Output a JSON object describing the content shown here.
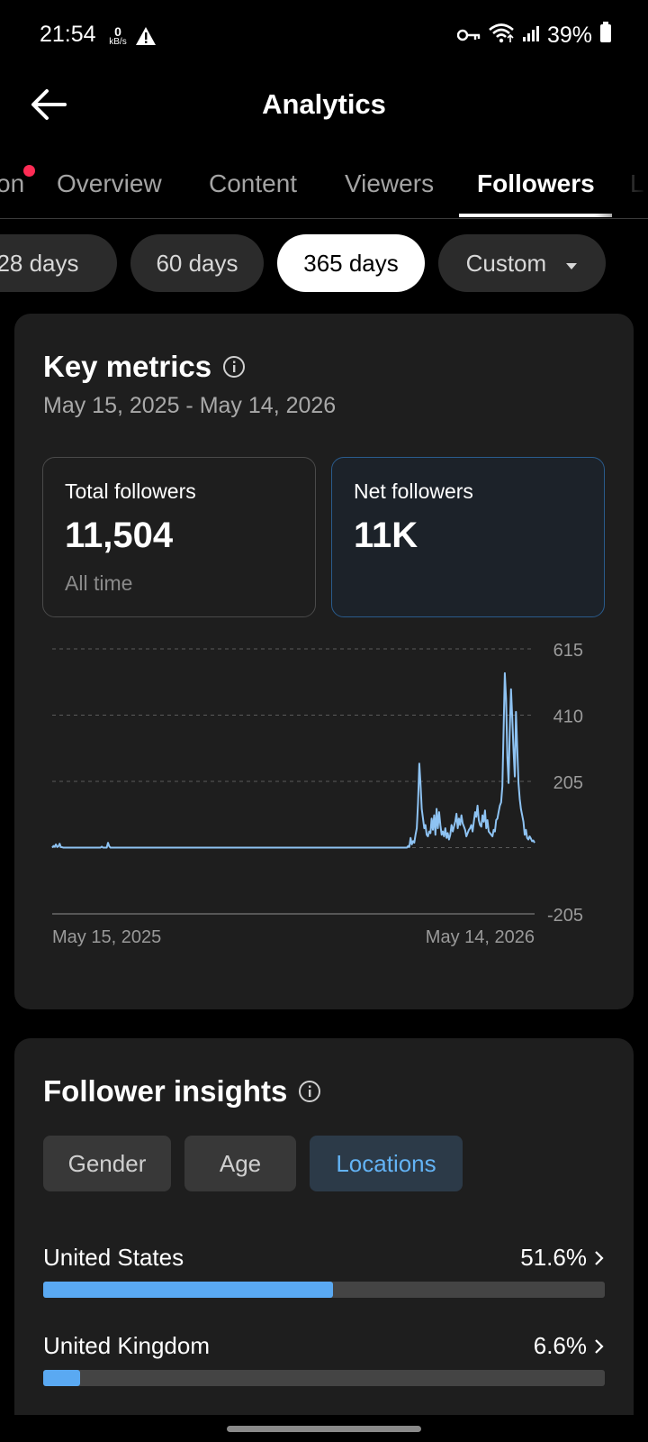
{
  "status_bar": {
    "time": "21:54",
    "net_speed_value": "0",
    "net_speed_unit": "kB/s",
    "battery": "39%",
    "icons": [
      "alert-triangle-icon",
      "key-icon",
      "wifi-icon",
      "signal-icon",
      "battery-icon"
    ]
  },
  "header": {
    "title": "Analytics",
    "back_icon": "arrow-left-icon"
  },
  "tabs": [
    {
      "label": "on",
      "has_notification_dot": true
    },
    {
      "label": "Overview"
    },
    {
      "label": "Content"
    },
    {
      "label": "Viewers"
    },
    {
      "label": "Followers",
      "active": true
    },
    {
      "label": "L"
    }
  ],
  "ranges": [
    {
      "label": "28 days"
    },
    {
      "label": "60 days"
    },
    {
      "label": "365 days",
      "active": true
    },
    {
      "label": "Custom",
      "dropdown": true
    }
  ],
  "key_metrics": {
    "title": "Key metrics",
    "date_range": "May 15, 2025 - May 14, 2026",
    "total_followers": {
      "label": "Total followers",
      "value": "11,504",
      "sub": "All time"
    },
    "net_followers": {
      "label": "Net followers",
      "value": "11K"
    }
  },
  "chart_data": {
    "type": "line",
    "x_start_label": "May 15, 2025",
    "x_end_label": "May 14, 2026",
    "y_ticks": [
      "615",
      "410",
      "205",
      "-205"
    ],
    "ylim": [
      -205,
      615
    ],
    "grid": true,
    "color": "#8ec3f3",
    "values": [
      0,
      5,
      3,
      10,
      2,
      4,
      12,
      2,
      1,
      0,
      0,
      0,
      0,
      0,
      0,
      0,
      0,
      0,
      0,
      0,
      0,
      0,
      0,
      0,
      0,
      0,
      0,
      0,
      0,
      0,
      0,
      0,
      0,
      0,
      0,
      0,
      0,
      0,
      0,
      0,
      3,
      0,
      0,
      0,
      0,
      15,
      4,
      0,
      0,
      0,
      0,
      0,
      0,
      0,
      0,
      0,
      0,
      0,
      0,
      0,
      0,
      0,
      0,
      0,
      0,
      0,
      0,
      0,
      0,
      0,
      0,
      0,
      0,
      0,
      0,
      0,
      0,
      0,
      0,
      0,
      0,
      0,
      0,
      0,
      0,
      0,
      0,
      0,
      0,
      0,
      0,
      0,
      0,
      0,
      0,
      0,
      0,
      0,
      0,
      0,
      0,
      0,
      0,
      0,
      0,
      0,
      0,
      0,
      0,
      0,
      0,
      0,
      0,
      0,
      0,
      0,
      0,
      0,
      0,
      0,
      0,
      0,
      0,
      0,
      0,
      0,
      0,
      0,
      0,
      0,
      0,
      0,
      0,
      0,
      0,
      0,
      0,
      0,
      0,
      0,
      0,
      0,
      0,
      0,
      0,
      0,
      0,
      0,
      0,
      0,
      0,
      0,
      0,
      0,
      0,
      0,
      0,
      0,
      0,
      0,
      0,
      0,
      0,
      0,
      0,
      0,
      0,
      0,
      0,
      0,
      0,
      0,
      0,
      0,
      0,
      0,
      0,
      0,
      0,
      0,
      0,
      0,
      0,
      0,
      0,
      0,
      0,
      0,
      0,
      0,
      0,
      0,
      0,
      0,
      0,
      0,
      0,
      0,
      0,
      0,
      0,
      0,
      0,
      0,
      0,
      0,
      0,
      0,
      0,
      0,
      0,
      0,
      0,
      0,
      0,
      0,
      0,
      0,
      0,
      0,
      0,
      0,
      0,
      0,
      0,
      0,
      0,
      0,
      0,
      0,
      0,
      0,
      0,
      0,
      0,
      0,
      0,
      0,
      0,
      0,
      0,
      0,
      0,
      0,
      0,
      0,
      0,
      0,
      0,
      0,
      0,
      0,
      0,
      0,
      0,
      0,
      0,
      0,
      0,
      0,
      0,
      0,
      0,
      0,
      0,
      0,
      0,
      0,
      0,
      0,
      0,
      0,
      0,
      0,
      0,
      0,
      0,
      0,
      0,
      0,
      0,
      0,
      0,
      0,
      0,
      0,
      0,
      5,
      2,
      30,
      10,
      20,
      15,
      40,
      60,
      140,
      260,
      200,
      120,
      90,
      60,
      70,
      40,
      35,
      50,
      45,
      90,
      55,
      100,
      40,
      120,
      60,
      110,
      70,
      40,
      50,
      35,
      60,
      30,
      45,
      25,
      40,
      70,
      50,
      65,
      80,
      105,
      60,
      90,
      70,
      100,
      75,
      65,
      55,
      35,
      45,
      55,
      60,
      70,
      50,
      80,
      110,
      95,
      130,
      85,
      70,
      65,
      100,
      80,
      115,
      60,
      85,
      50,
      45,
      40,
      35,
      55,
      50,
      85,
      90,
      110,
      130,
      140,
      190,
      370,
      540,
      460,
      280,
      200,
      360,
      490,
      400,
      300,
      220,
      420,
      310,
      200,
      150,
      120,
      100,
      80,
      40,
      55,
      30,
      25,
      35,
      28,
      20,
      22,
      15
    ]
  },
  "follower_insights": {
    "title": "Follower insights",
    "filters": [
      {
        "label": "Gender"
      },
      {
        "label": "Age"
      },
      {
        "label": "Locations",
        "active": true
      }
    ],
    "locations": [
      {
        "name": "United States",
        "percent": "51.6%",
        "share": 0.516
      },
      {
        "name": "United Kingdom",
        "percent": "6.6%",
        "share": 0.066
      }
    ]
  }
}
